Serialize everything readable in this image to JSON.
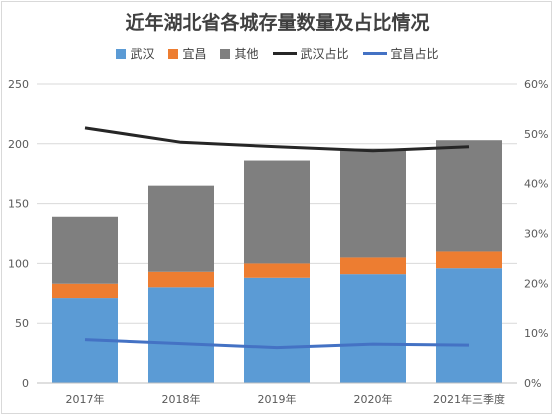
{
  "chart_data": {
    "type": "bar",
    "title": "近年湖北省各城存量数量及占比情况",
    "categories": [
      "2017年",
      "2018年",
      "2019年",
      "2020年",
      "2021年三季度"
    ],
    "stacked": true,
    "ylim": [
      0,
      250
    ],
    "y_ticks": [
      "0",
      "50",
      "100",
      "150",
      "200",
      "250"
    ],
    "y2lim": [
      0,
      0.6
    ],
    "y2_ticks": [
      "0%",
      "10%",
      "20%",
      "30%",
      "40%",
      "50%",
      "60%"
    ],
    "series": [
      {
        "name": "武汉",
        "kind": "bar",
        "color": "#5b9bd5",
        "values": [
          71,
          80,
          88,
          91,
          96
        ]
      },
      {
        "name": "宜昌",
        "kind": "bar",
        "color": "#ed7d31",
        "values": [
          12,
          13,
          12,
          14,
          14
        ]
      },
      {
        "name": "其他",
        "kind": "bar",
        "color": "#7f7f7f",
        "values": [
          56,
          72,
          86,
          91,
          93
        ]
      },
      {
        "name": "武汉占比",
        "kind": "line",
        "axis": "right",
        "color": "#262626",
        "values": [
          0.512,
          0.483,
          0.474,
          0.466,
          0.474
        ]
      },
      {
        "name": "宜昌占比",
        "kind": "line",
        "axis": "right",
        "color": "#4472c4",
        "values": [
          0.087,
          0.079,
          0.071,
          0.078,
          0.076
        ]
      }
    ],
    "grid": true,
    "legend": "top"
  }
}
